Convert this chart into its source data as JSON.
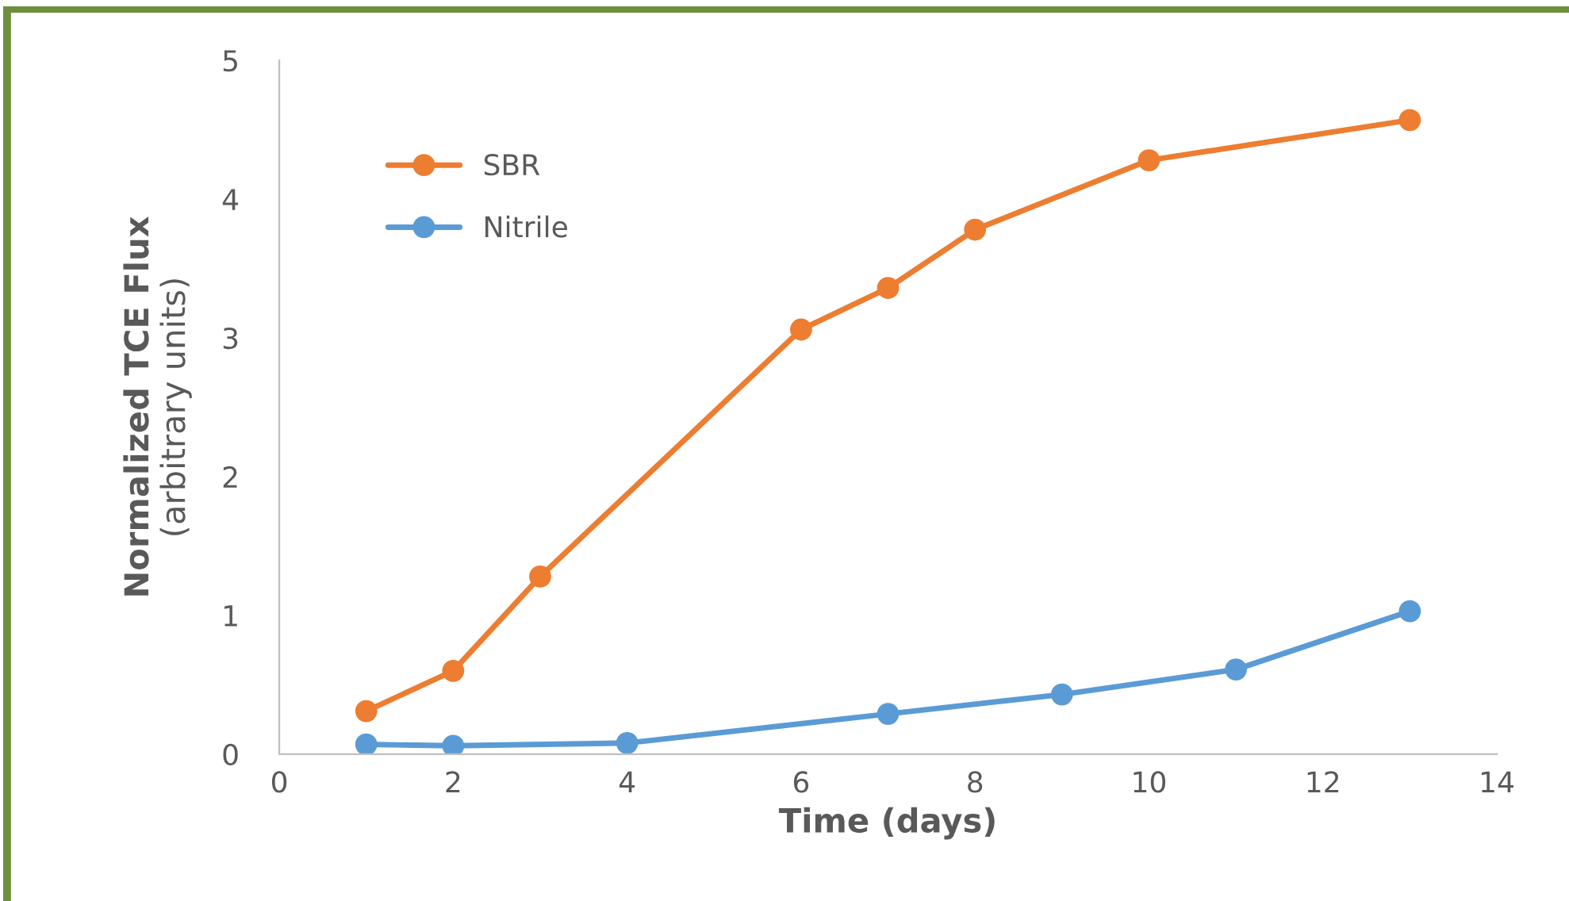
{
  "chart_data": {
    "type": "line",
    "xlabel": "Time (days)",
    "ylabel": "Normalized TCE Flux\n(arbitrary units)",
    "xlim": [
      0,
      14
    ],
    "xticks": [
      0,
      2,
      4,
      6,
      8,
      10,
      12,
      14
    ],
    "ylim": [
      0,
      5
    ],
    "yticks": [
      0,
      1,
      2,
      3,
      4,
      5
    ],
    "grid": false,
    "legend": "top left",
    "marker": "circle",
    "line_style": "solid",
    "series": [
      {
        "name": "SBR",
        "color": "#ed7d31",
        "x": [
          1,
          2,
          3,
          6,
          7,
          8,
          10,
          13
        ],
        "values": [
          0.31,
          0.6,
          1.28,
          3.06,
          3.36,
          3.78,
          4.28,
          4.57
        ]
      },
      {
        "name": "Nitrile",
        "color": "#5b9bd5",
        "x": [
          1,
          2,
          4,
          7,
          9,
          11,
          13
        ],
        "values": [
          0.07,
          0.06,
          0.08,
          0.29,
          0.43,
          0.61,
          1.03
        ]
      }
    ]
  }
}
